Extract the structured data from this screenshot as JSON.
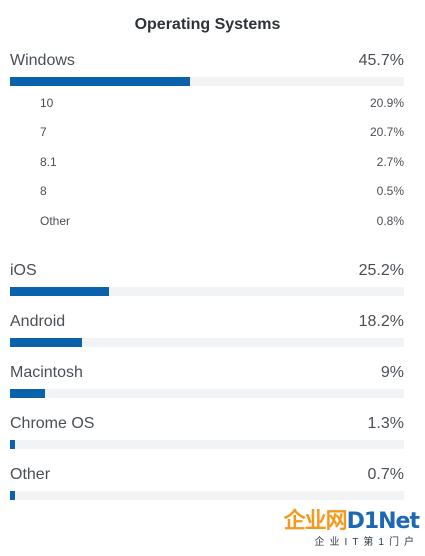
{
  "title": "Operating Systems",
  "colors": {
    "bar_fill": "#0a62ad",
    "bar_track": "#f2f3f4",
    "text": "#4a4f55"
  },
  "main_items": [
    {
      "name": "Windows",
      "percent_text": "45.7%",
      "value": 45.7
    },
    {
      "name": "iOS",
      "percent_text": "25.2%",
      "value": 25.2
    },
    {
      "name": "Android",
      "percent_text": "18.2%",
      "value": 18.2
    },
    {
      "name": "Macintosh",
      "percent_text": "9%",
      "value": 9
    },
    {
      "name": "Chrome OS",
      "percent_text": "1.3%",
      "value": 1.3
    },
    {
      "name": "Other",
      "percent_text": "0.7%",
      "value": 0.7
    }
  ],
  "windows_versions": [
    {
      "name": "10",
      "percent_text": "20.9%"
    },
    {
      "name": "7",
      "percent_text": "20.7%"
    },
    {
      "name": "8.1",
      "percent_text": "2.7%"
    },
    {
      "name": "8",
      "percent_text": "0.5%"
    },
    {
      "name": "Other",
      "percent_text": "0.8%"
    }
  ],
  "watermark": {
    "brand_cn": "企业网",
    "brand_en": "D1Net",
    "tagline": "企业IT第1门户"
  }
}
